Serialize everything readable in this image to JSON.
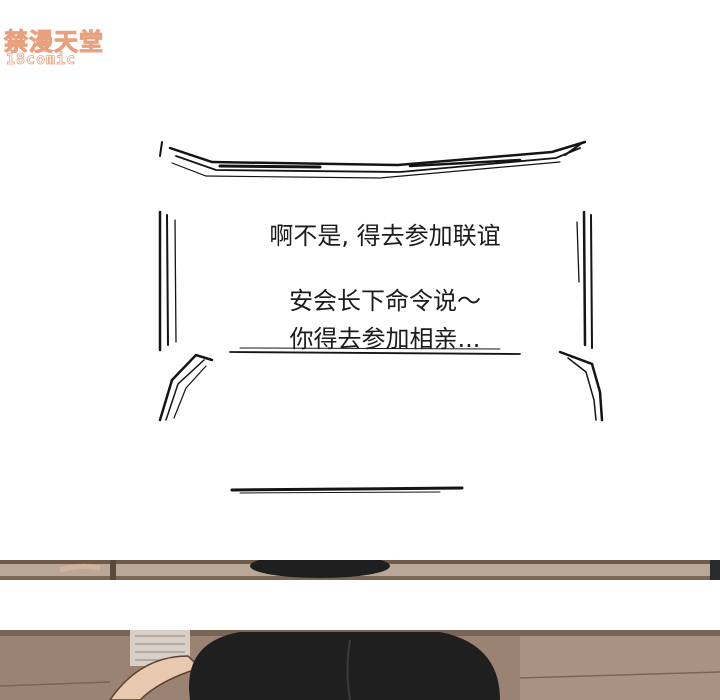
{
  "watermark": {
    "line1": "禁漫天堂",
    "line2": "18comic"
  },
  "speech": {
    "line1": "啊不是, 得去参加联谊",
    "line2": "安会长下命令说～",
    "line3": "你得去参加相亲..."
  },
  "colors": {
    "ink": "#1c1c1c",
    "watermark": "#e8a07f",
    "floor": "#8a6f5a",
    "chair": "#1f1f1f"
  }
}
